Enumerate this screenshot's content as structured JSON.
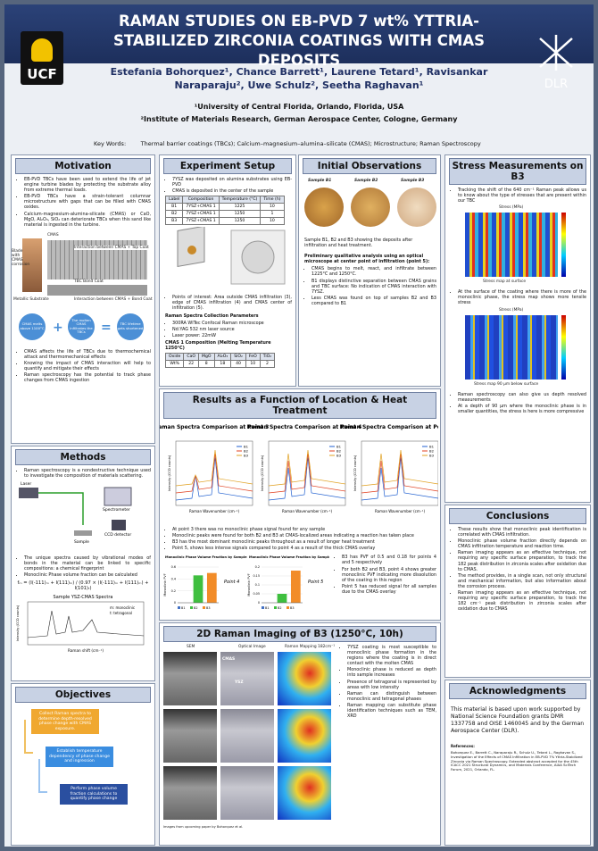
{
  "header": {
    "title": "RAMAN STUDIES ON EB-PVD 7 wt% YTTRIA-STABILIZED ZIRCONIA COATINGS WITH CMAS DEPOSITS",
    "authors": "Estefania Bohorquez¹, Chance Barrett¹, Laurene Tetard¹, Ravisankar Naraparaju², Uwe Schulz², Seetha Raghavan¹",
    "affiliations": [
      "¹University of Central Florida, Orlando, Florida, USA",
      "²Institute of Materials Research, German Aerospace Center, Cologne, Germany"
    ],
    "keywords_label": "Key Words:",
    "keywords": "Thermal barrier coatings (TBCs); Calcium–magnesium–alumina–silicate (CMAS); Microstructure; Raman Spectroscopy",
    "logo_left": "UCF",
    "logo_right": "DLR"
  },
  "motivation": {
    "title": "Motivation",
    "bullets": [
      "EB-PVD TBCs have been used to extend the life of jet engine turbine blades by protecting the substrate alloy from extreme thermal loads.",
      "EB-PVD TBCs have a strain-tolerant columnar microstructure with gaps that can be filled with CMAS oxides.",
      "Calcium-magnesium-alumina-silicate (CMAS) or CaO, MgO, Al₂O₃, SiO₂ can deteriorate TBCs when this sand like material is ingested in the turbine."
    ],
    "figure_labels": [
      "Blade with CMAS corrosion",
      "CMAS",
      "Interaction between CMAS + Top Coat",
      "TBC Bond Coat",
      "Metallic Substrate",
      "Interaction between CMAS + Bond Coat"
    ],
    "circles": [
      "CMAS melts above 1100°C",
      "The molten CMAS infiltrates the TBCs",
      "TBC lifetime gets shortened"
    ],
    "bullets2": [
      "CMAS affects the life of TBCs due to thermochemical attack and thermomechanical effects",
      "Knowing the impact of CMAS interaction will help to quantify and mitigate their effects",
      "Raman spectroscopy has the potential to track phase changes from CMAS ingestion"
    ]
  },
  "methods": {
    "title": "Methods",
    "bullets": [
      "Raman spectroscopy is a nondestructive technique used to investigate the composition of materials scattering."
    ],
    "figure_labels": [
      "Laser",
      "Sample",
      "Spectrometer",
      "CCD detector"
    ],
    "bullets2": [
      "The unique spectra caused by vibrational modes of bonds in the material can be linked to specific compositions: a chemical fingerprint",
      "Monoclinic Phase volume fraction can be calculated"
    ],
    "formula": "fₘ = (I(-111)ₘ + I(111)ₘ) / (0.97 × (I(-111)ₘ + I(111)ₘ) + I(101)ₜ)",
    "spectrum_title": "Sample YSZ-CMAS Spectra",
    "spectrum_legend": [
      "m: monoclinic",
      "t: tetragonal"
    ],
    "xlabel": "Raman shift (cm⁻¹)",
    "ylabel": "Intensity (CCD counts)"
  },
  "objectives": {
    "title": "Objectives",
    "steps": [
      "Collect Raman spectra to determine depth-resolved phase change with CMAS exposure.",
      "Establish temperature dependency of phase change and ingression",
      "Perform phase volume fraction calculations to quantify phase change"
    ]
  },
  "experiment": {
    "title": "Experiment Setup",
    "bullets": [
      "7YSZ was deposited on alumina substrates using EB-PVD",
      "CMAS is deposited in the center of the sample"
    ],
    "table": {
      "header": [
        "Label",
        "Composition",
        "Temperature (°C)",
        "Time (h)"
      ],
      "rows": [
        [
          "B1",
          "7YSZ+CMAS 1",
          "1225",
          "10"
        ],
        [
          "B2",
          "7YSZ+CMAS 1",
          "1250",
          "1"
        ],
        [
          "B3",
          "7YSZ+CMAS 1",
          "1250",
          "10"
        ]
      ]
    },
    "bullets2": [
      "Points of interest: Area outside CMAS infiltration (3), edge of CMAS infiltration (4) and CMAS center of infiltration (5)."
    ],
    "params_title": "Raman Spectra Collection Parameters",
    "params": [
      "300RA WITec Confocal Raman microscope",
      "Nd:YAG 532 nm laser source",
      "Laser power: 22mW"
    ],
    "comp_title": "CMAS 1 Composition (Melting Temperature 1250°C)",
    "comp_table": {
      "header": [
        "Oxide",
        "CaO",
        "MgO",
        "Al₂O₃",
        "SiO₂",
        "FeO",
        "TiO₂"
      ],
      "rows": [
        [
          "Wt%",
          "22",
          "8",
          "18",
          "40",
          "10",
          "2"
        ]
      ]
    }
  },
  "observations": {
    "title": "Initial Observations",
    "samples": [
      "Sample B1",
      "Sample B2",
      "Sample B3"
    ],
    "caption": "Sample B1, B2 and B3 showing the deposits after infiltration and heat treatment.",
    "lead": "Preliminary qualitative analysis using an optical microscope at center point of infiltration (point 5):",
    "bullets": [
      "CMAS begins to melt, react, and infiltrate between 1225°C and 1250°C.",
      "B1 displays distinctive separation between CMAS grains and TBC surface: No indication of CMAS interaction with 7YSZ.",
      "Less CMAS was found on top of samples B2 and B3 compared to B1"
    ]
  },
  "results": {
    "title": "Results as a Function of Location & Heat Treatment",
    "spectra_titles": [
      "Raman Spectra Comparison at Point 3",
      "Raman Spectra Comparison at Point 4",
      "Raman Spectra Comparison at Point 5"
    ],
    "legend": [
      "B1",
      "B2",
      "B3"
    ],
    "xlabel": "Raman Wavenumber (cm⁻¹)",
    "ylabel": "Intensity (CCD counts)",
    "bullets": [
      "At point 3 there was no monoclinic phase signal found for any sample",
      "Monoclinic peaks were found for both B2 and B3 at CMAS-localized areas indicating a reaction has taken place",
      "B3 has the most dominant monoclinic peaks throughout as a result of longer heat treatment",
      "Point 5, shows less intense signals compared to point 4 as a result of the thick CMAS overlay"
    ],
    "pvf_charts": [
      {
        "type": "bar",
        "title": "Monoclinic Phase Volume Fraction by Sample",
        "label": "Point 4",
        "ylabel": "Monoclinic PVF",
        "categories": [
          "B1",
          "B2",
          "B3"
        ],
        "values": [
          0,
          0.46,
          0.5
        ],
        "colors": [
          "#4472c4",
          "#3fbf3f",
          "#f28c28"
        ],
        "ylim": [
          0,
          0.6
        ],
        "yticks": [
          0,
          0.2,
          0.4,
          0.6
        ]
      },
      {
        "type": "bar",
        "title": "Monoclinic Phase Volume Fraction by Sample",
        "label": "Point 5",
        "ylabel": "Monoclinic PVF",
        "categories": [
          "B1",
          "B2",
          "B3"
        ],
        "values": [
          0,
          0.05,
          0.18
        ],
        "colors": [
          "#4472c4",
          "#3fbf3f",
          "#f28c28"
        ],
        "ylim": [
          0,
          0.2
        ],
        "yticks": [
          0,
          0.05,
          0.1,
          0.15,
          0.2
        ]
      }
    ],
    "bullets2": [
      "B3 has PVF of 0.5 and 0.18 for points 4 and 5 respectively",
      "For both B2 and B3, point 4 shows greater monoclinic PVF indicating more dissolution of the coating in this region",
      "Point 5 has reduced signal for all samples due to the CMAS overlay"
    ]
  },
  "imaging": {
    "title": "2D Raman Imaging of B3 (1250°C, 10h)",
    "columns": [
      "SEM",
      "Optical Image",
      "Raman Mapping 182cm⁻¹"
    ],
    "labels": [
      "CMAS",
      "YSZ"
    ],
    "caption": "Images from upcoming paper by Bohorquez et al.",
    "bullets": [
      "7YSZ coating is most susceptible to monoclinic phase formation in the regions where the coating is in direct contact with the molten CMAS",
      "Monoclinic phase is reduced as depth into sample increases",
      "Presence of tetragonal is represented by areas with low intensity",
      "Raman can distinguish between monoclinic and tetragonal phases",
      "Raman mapping can substitute phase identification techniques such as TEM, XRD"
    ]
  },
  "stress": {
    "title": "Stress Measurements on B3",
    "bullets": [
      "Tracking the shift of the 640 cm⁻¹ Raman peak allows us to know about the type of stresses that are present within our TBC"
    ],
    "map_label": "Stress (MPa)",
    "captions": [
      "Stress map at surface",
      "Stress map 90 µm below surface"
    ],
    "bullets2": [
      "At the surface of the coating where there is more of the monoclinic phase, the stress map shows more tensile stress"
    ],
    "bullets3": [
      "Raman spectroscopy can also give us depth resolved measurements",
      "At a depth of 90 µm where the monoclinic phase is in smaller quantities, the stress is here is more compressive"
    ]
  },
  "conclusions": {
    "title": "Conclusions",
    "bullets": [
      "These results show that monoclinic peak identification is correlated with CMAS infiltration.",
      "Monoclinic phase volume fraction directly depends on CMAS infiltration temperature and reaction time.",
      "Raman imaging appears as an effective technique, not requiring any specific surface preparation, to track the 182 peak distribution in zirconia scales after oxidation due to CMAS.",
      "The method provides, in a single scan, not only structural and mechanical information, but also information about the corrosion process.",
      "Raman imaging appears as an effective technique, not requiring any specific surface preparation, to track the 182 cm⁻¹ peak distribution in zirconia scales after oxidation due to CMAS"
    ]
  },
  "acknowledgments": {
    "title": "Acknowledgments",
    "text": "This material is based upon work supported by National Science Foundation grants DMR 1337758 and OISE 1460045 and by the German Aerospace Center (DLR).",
    "references_label": "References:",
    "reference": "Bohorquez E., Barrett C., Naraparaju R., Schulz U., Tetard L., Raghavan S., Investigation of the Effects of CMAS Infiltration in EB-PVD 7% Yttria-Stabilized Zirconia via Raman Spectroscopy. Extended abstract accepted for the 45th ICACC 2021 Structural Dynamics, and Materials Conference, AIAA SciTech Forum, 2021, Orlando, FL."
  }
}
